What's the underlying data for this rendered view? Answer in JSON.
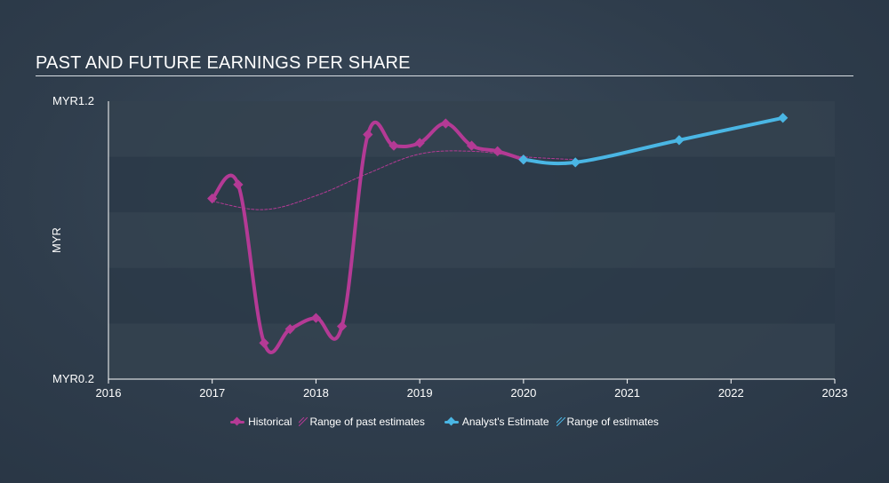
{
  "header": {
    "title": "PAST AND FUTURE EARNINGS PER SHARE"
  },
  "colors": {
    "historical": "#b43a95",
    "estimate": "#4ab6e4",
    "band_dark": "#2c3a48",
    "band_light": "#34424f"
  },
  "legend": {
    "historical": "Historical",
    "past_range": "Range of past estimates",
    "estimate": "Analyst's Estimate",
    "future_range": "Range of estimates"
  },
  "chart_data": {
    "type": "line",
    "title": "PAST AND FUTURE EARNINGS PER SHARE",
    "ylabel": "MYR",
    "y_tick_labels": [
      "MYR1.2",
      "MYR0.2"
    ],
    "ylim": [
      0.2,
      1.2
    ],
    "xlim": [
      2016,
      2023
    ],
    "x_ticks": [
      2016,
      2017,
      2018,
      2019,
      2020,
      2021,
      2022,
      2023
    ],
    "series": [
      {
        "name": "Historical",
        "x": [
          2017.0,
          2017.25,
          2017.5,
          2017.75,
          2018.0,
          2018.25,
          2018.5,
          2018.75,
          2019.0,
          2019.25,
          2019.5,
          2019.75,
          2020.0
        ],
        "values": [
          0.85,
          0.9,
          0.33,
          0.38,
          0.42,
          0.39,
          1.08,
          1.04,
          1.05,
          1.12,
          1.04,
          1.02,
          0.99
        ]
      },
      {
        "name": "Range of past estimates",
        "x": [
          2017.0,
          2017.5,
          2018.0,
          2018.5,
          2019.0,
          2019.5,
          2020.0,
          2020.5
        ],
        "values": [
          0.84,
          0.81,
          0.86,
          0.94,
          1.01,
          1.02,
          1.0,
          0.99
        ]
      },
      {
        "name": "Analyst's Estimate",
        "x": [
          2020.0,
          2020.5,
          2021.5,
          2022.5
        ],
        "values": [
          0.99,
          0.98,
          1.06,
          1.14
        ]
      }
    ],
    "grid": true,
    "legend_position": "bottom"
  }
}
